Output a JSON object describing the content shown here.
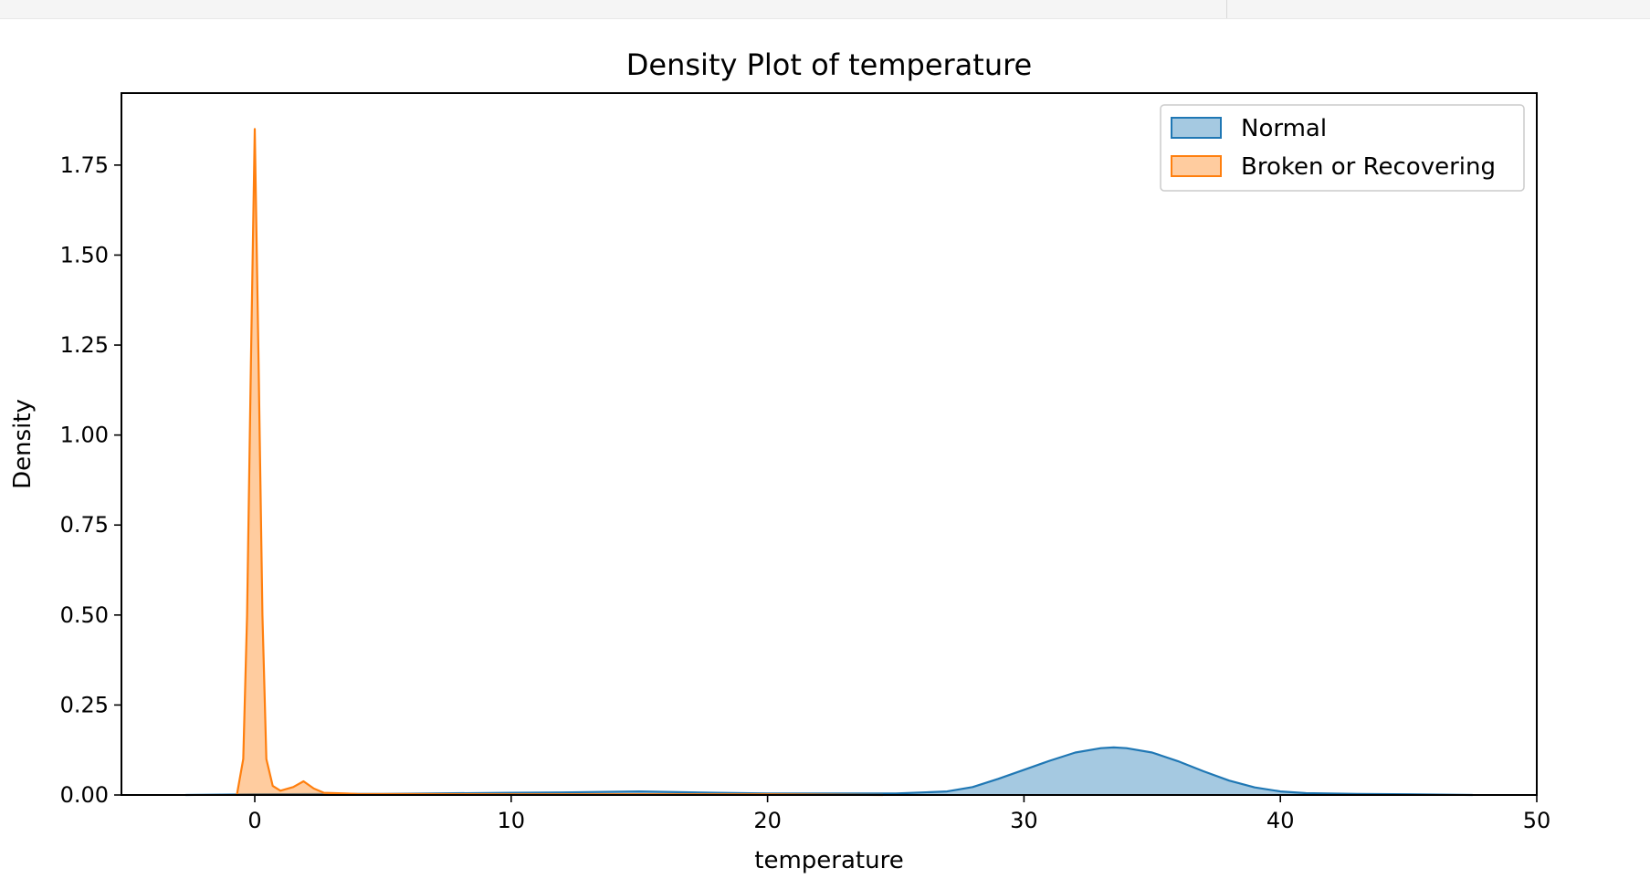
{
  "chart_data": {
    "type": "area",
    "title": "Density Plot of temperature",
    "xlabel": "temperature",
    "ylabel": "Density",
    "xlim": [
      -5.2,
      50
    ],
    "ylim": [
      0,
      1.95
    ],
    "xticks": [
      0,
      10,
      20,
      30,
      40,
      50
    ],
    "yticks": [
      0.0,
      0.25,
      0.5,
      0.75,
      1.0,
      1.25,
      1.5,
      1.75
    ],
    "grid": false,
    "legend_position": "top-right",
    "series": [
      {
        "name": "Normal",
        "color": "#1f77b4",
        "points": [
          [
            -2.7,
            0.0
          ],
          [
            0,
            0.002
          ],
          [
            5,
            0.003
          ],
          [
            10,
            0.006
          ],
          [
            12,
            0.007
          ],
          [
            15,
            0.01
          ],
          [
            18,
            0.006
          ],
          [
            20,
            0.004
          ],
          [
            25,
            0.004
          ],
          [
            27,
            0.01
          ],
          [
            28,
            0.022
          ],
          [
            29,
            0.045
          ],
          [
            30,
            0.07
          ],
          [
            31,
            0.095
          ],
          [
            32,
            0.118
          ],
          [
            33,
            0.13
          ],
          [
            33.5,
            0.132
          ],
          [
            34,
            0.13
          ],
          [
            35,
            0.118
          ],
          [
            36,
            0.094
          ],
          [
            37,
            0.066
          ],
          [
            38,
            0.04
          ],
          [
            39,
            0.021
          ],
          [
            40,
            0.01
          ],
          [
            41,
            0.005
          ],
          [
            43,
            0.003
          ],
          [
            45,
            0.002
          ],
          [
            47.5,
            0.0
          ]
        ]
      },
      {
        "name": "Broken or Recovering",
        "color": "#ff7f0e",
        "points": [
          [
            -0.7,
            0.0
          ],
          [
            -0.45,
            0.1
          ],
          [
            -0.3,
            0.5
          ],
          [
            -0.15,
            1.2
          ],
          [
            0,
            1.85
          ],
          [
            0.15,
            1.2
          ],
          [
            0.3,
            0.5
          ],
          [
            0.45,
            0.1
          ],
          [
            0.7,
            0.025
          ],
          [
            1.0,
            0.012
          ],
          [
            1.5,
            0.022
          ],
          [
            1.9,
            0.038
          ],
          [
            2.3,
            0.018
          ],
          [
            2.7,
            0.006
          ],
          [
            4,
            0.003
          ],
          [
            10,
            0.002
          ],
          [
            20,
            0.002
          ],
          [
            24.5,
            0.0
          ]
        ]
      }
    ]
  }
}
